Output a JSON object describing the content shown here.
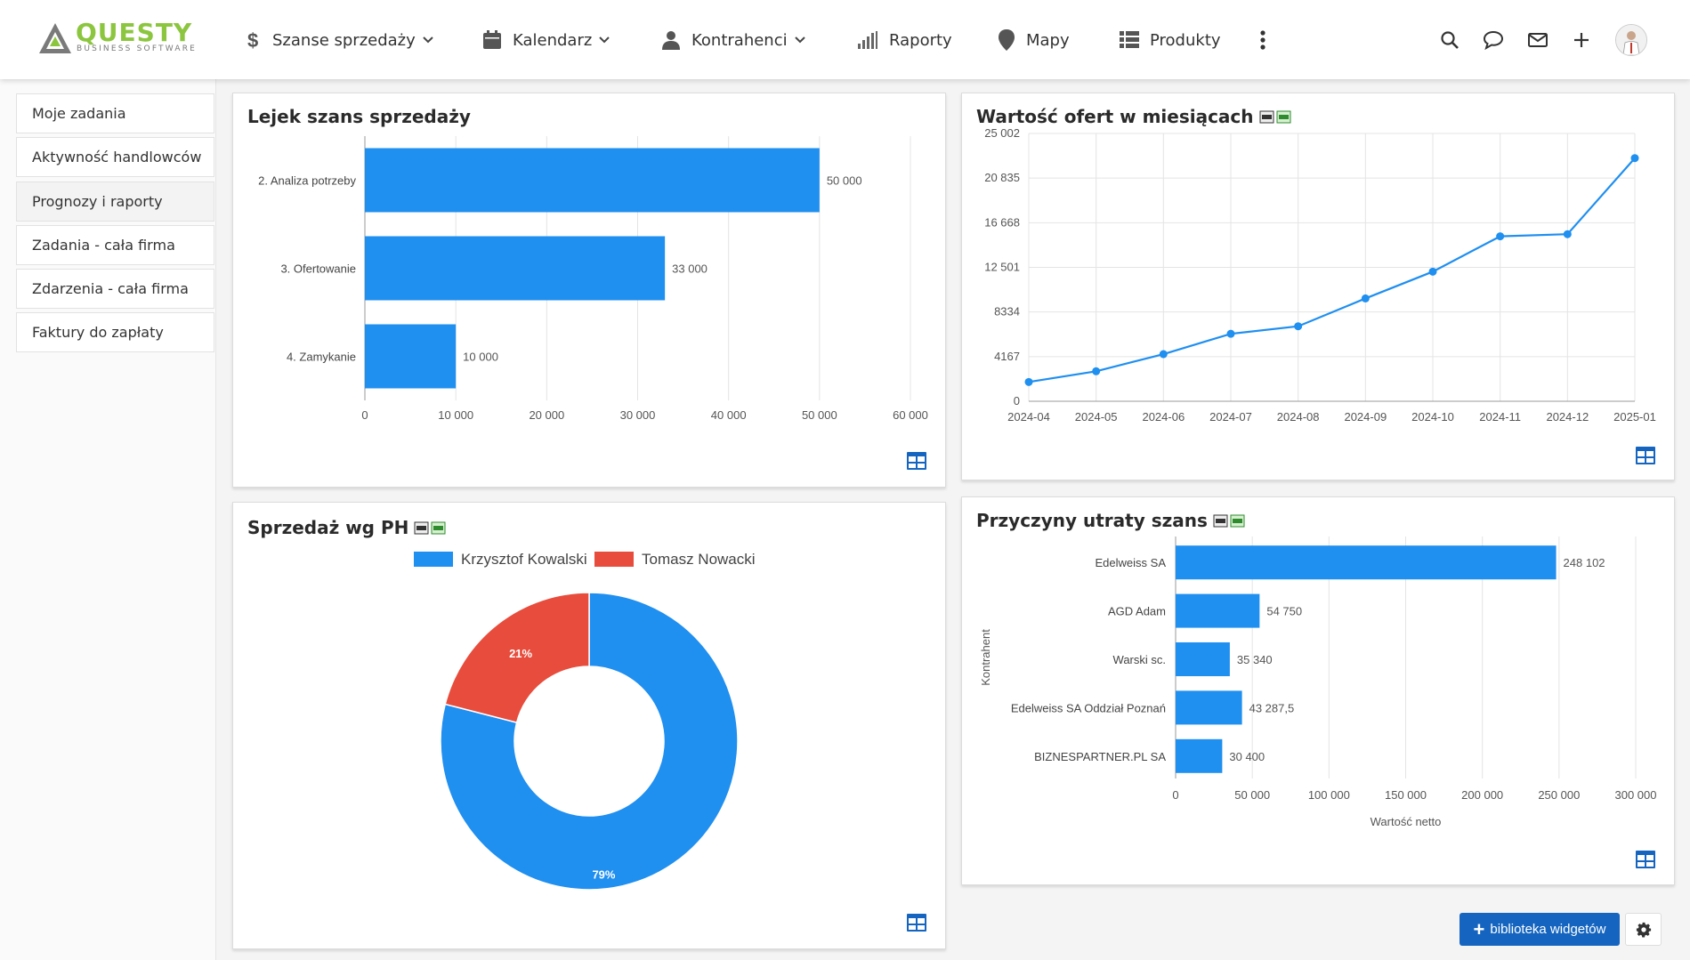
{
  "app": {
    "logo_name": "QUESTY",
    "logo_sub": "BUSINESS SOFTWARE",
    "brand_color": "#8cc63f",
    "accent_color": "#1f8ff0"
  },
  "nav": {
    "items": [
      {
        "label": "Szanse sprzedaży",
        "icon": "dollar-icon",
        "dropdown": true
      },
      {
        "label": "Kalendarz",
        "icon": "calendar-icon",
        "dropdown": true
      },
      {
        "label": "Kontrahenci",
        "icon": "person-icon",
        "dropdown": true
      },
      {
        "label": "Raporty",
        "icon": "signal-bars-icon",
        "dropdown": false
      },
      {
        "label": "Mapy",
        "icon": "map-pin-icon",
        "dropdown": false
      },
      {
        "label": "Produkty",
        "icon": "grid-list-icon",
        "dropdown": false
      }
    ],
    "more_icon": "kebab-menu-icon",
    "right_icons": [
      "search-icon",
      "chat-icon",
      "mail-icon",
      "plus-icon",
      "avatar"
    ]
  },
  "sidebar": {
    "items": [
      {
        "label": "Moje zadania"
      },
      {
        "label": "Aktywność handlowców"
      },
      {
        "label": "Prognozy i raporty",
        "active": true
      },
      {
        "label": "Zadania - cała firma"
      },
      {
        "label": "Zdarzenia - cała firma"
      },
      {
        "label": "Faktury do zapłaty"
      }
    ]
  },
  "widgets": {
    "funnel": {
      "title": "Lejek szans sprzedaży"
    },
    "offers": {
      "title": "Wartość ofert w miesiącach"
    },
    "sales": {
      "title": "Sprzedaż wg PH"
    },
    "loss": {
      "title": "Przyczyny utraty szans"
    }
  },
  "footer": {
    "library_button": "biblioteka widgetów",
    "settings_icon": "gear-icon"
  },
  "chart_data": [
    {
      "type": "bar",
      "orientation": "horizontal",
      "title": "Lejek szans sprzedaży",
      "categories": [
        "2. Analiza potrzeby",
        "3. Ofertowanie",
        "4. Zamykanie"
      ],
      "values": [
        50000,
        33000,
        10000
      ],
      "value_labels": [
        "50 000",
        "33 000",
        "10 000"
      ],
      "xlim": [
        0,
        60000
      ],
      "xticks": [
        "0",
        "10 000",
        "20 000",
        "30 000",
        "40 000",
        "50 000",
        "60 000"
      ],
      "grid": true,
      "color": "#1f8ff0"
    },
    {
      "type": "line",
      "title": "Wartość ofert w miesiącach",
      "x": [
        "2024-04",
        "2024-05",
        "2024-06",
        "2024-07",
        "2024-08",
        "2024-09",
        "2024-10",
        "2024-11",
        "2024-12",
        "2025-01"
      ],
      "values": [
        1800,
        2800,
        4400,
        6300,
        7000,
        9600,
        12100,
        15400,
        15600,
        22700
      ],
      "ylim": [
        0,
        25002
      ],
      "yticks": [
        "0",
        "4167",
        "8334",
        "12 501",
        "16 668",
        "20 835",
        "25 002"
      ],
      "grid": true,
      "color": "#1f8ff0"
    },
    {
      "type": "pie",
      "variant": "donut",
      "title": "Sprzedaż wg PH",
      "series": [
        {
          "name": "Krzysztof Kowalski",
          "value": 79,
          "label": "79%",
          "color": "#1f8ff0"
        },
        {
          "name": "Tomasz Nowacki",
          "value": 21,
          "label": "21%",
          "color": "#e74c3c"
        }
      ],
      "legend": "top"
    },
    {
      "type": "bar",
      "orientation": "horizontal",
      "title": "Przyczyny utraty szans",
      "categories": [
        "Edelweiss SA",
        "AGD Adam",
        "Warski sc.",
        "Edelweiss SA Oddział Poznań",
        "BIZNESPARTNER.PL SA"
      ],
      "values": [
        248102,
        54750,
        35340,
        43287.5,
        30400
      ],
      "value_labels": [
        "248 102",
        "54 750",
        "35 340",
        "43 287,5",
        "30 400"
      ],
      "xlim": [
        0,
        300000
      ],
      "xticks": [
        "0",
        "50 000",
        "100 000",
        "150 000",
        "200 000",
        "250 000",
        "300 000"
      ],
      "xlabel": "Wartość netto",
      "ylabel": "Kontrahent",
      "grid": true,
      "color": "#1f8ff0"
    }
  ]
}
